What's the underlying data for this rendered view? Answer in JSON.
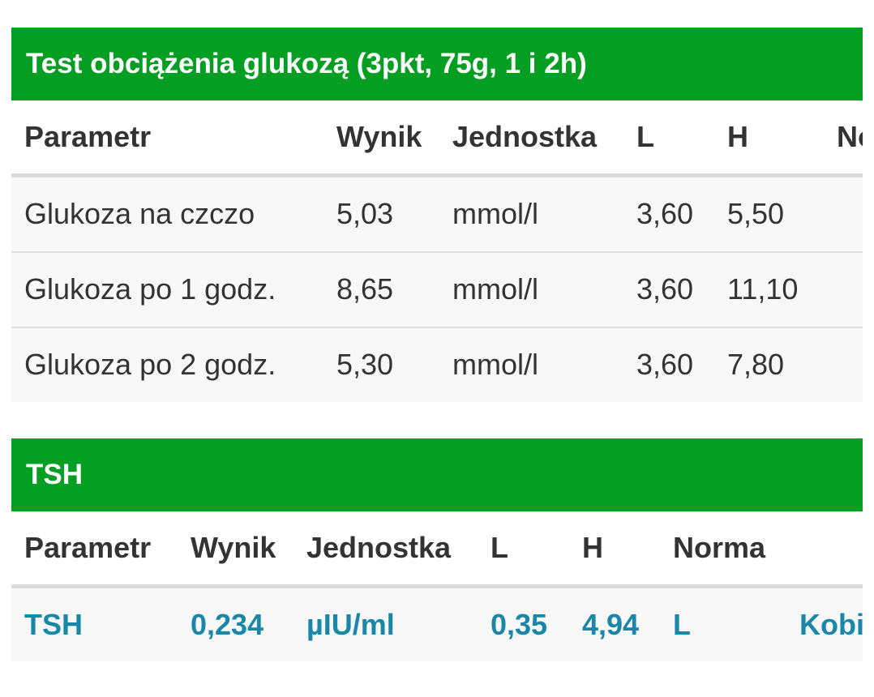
{
  "glucose": {
    "title": "Test obciążenia glukozą (3pkt, 75g, 1 i 2h)",
    "headers": [
      "Parametr",
      "Wynik",
      "Jednostka",
      "L",
      "H",
      "Norma"
    ],
    "rows": [
      {
        "parametr": "Glukoza na czczo",
        "wynik": "5,03",
        "jednostka": "mmol/l",
        "l": "3,60",
        "h": "5,50"
      },
      {
        "parametr": "Glukoza po 1 godz.",
        "wynik": "8,65",
        "jednostka": "mmol/l",
        "l": "3,60",
        "h": "11,10"
      },
      {
        "parametr": "Glukoza po 2 godz.",
        "wynik": "5,30",
        "jednostka": "mmol/l",
        "l": "3,60",
        "h": "7,80"
      }
    ]
  },
  "tsh": {
    "title": "TSH",
    "headers": [
      "Parametr",
      "Wynik",
      "Jednostka",
      "L",
      "H",
      "Norma"
    ],
    "rows": [
      {
        "parametr": "TSH",
        "wynik": "0,234",
        "jednostka": "µIU/ml",
        "l": "0,35",
        "h": "4,94",
        "flag": "L",
        "norma": "Kobi"
      }
    ],
    "highlight_color": "#1a86a8"
  },
  "colors": {
    "header_bg": "#039e22"
  }
}
